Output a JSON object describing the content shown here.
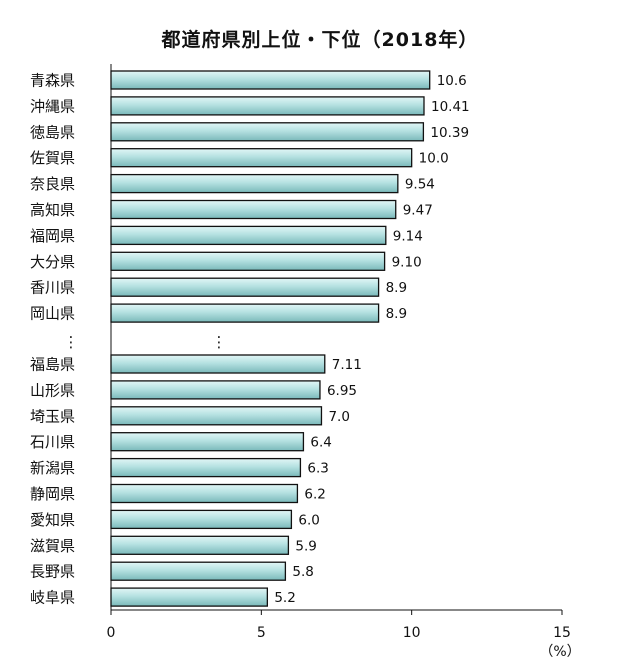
{
  "chart_data": {
    "type": "bar",
    "orientation": "horizontal",
    "title": "都道府県別上位・下位（2018年）",
    "xlim": [
      0,
      15
    ],
    "xticks": [
      "0",
      "5",
      "10",
      "15"
    ],
    "unit": "（%）",
    "gap_marker": "⋮",
    "grid": false,
    "legend": "none",
    "colors": {
      "bar_fill_light": "#e2f6f6",
      "bar_fill_mid": "#b5e1e1",
      "bar_fill_dark": "#7ab9ba",
      "bar_stroke": "#111111"
    },
    "top_group": {
      "categories": [
        "青森県",
        "沖縄県",
        "徳島県",
        "佐賀県",
        "奈良県",
        "高知県",
        "福岡県",
        "大分県",
        "香川県",
        "岡山県"
      ],
      "values": [
        10.6,
        10.41,
        10.39,
        10.0,
        9.54,
        9.47,
        9.14,
        9.1,
        8.9,
        8.9
      ],
      "labels": [
        "10.6",
        "10.41",
        "10.39",
        "10.0",
        "9.54",
        "9.47",
        "9.14",
        "9.10",
        "8.9",
        "8.9"
      ]
    },
    "bottom_group": {
      "categories": [
        "福島県",
        "山形県",
        "埼玉県",
        "石川県",
        "新潟県",
        "静岡県",
        "愛知県",
        "滋賀県",
        "長野県",
        "岐阜県"
      ],
      "values": [
        7.11,
        6.95,
        7.0,
        6.4,
        6.3,
        6.2,
        6.0,
        5.9,
        5.8,
        5.2
      ],
      "labels": [
        "7.11",
        "6.95",
        "7.0",
        "6.4",
        "6.3",
        "6.2",
        "6.0",
        "5.9",
        "5.8",
        "5.2"
      ]
    }
  }
}
